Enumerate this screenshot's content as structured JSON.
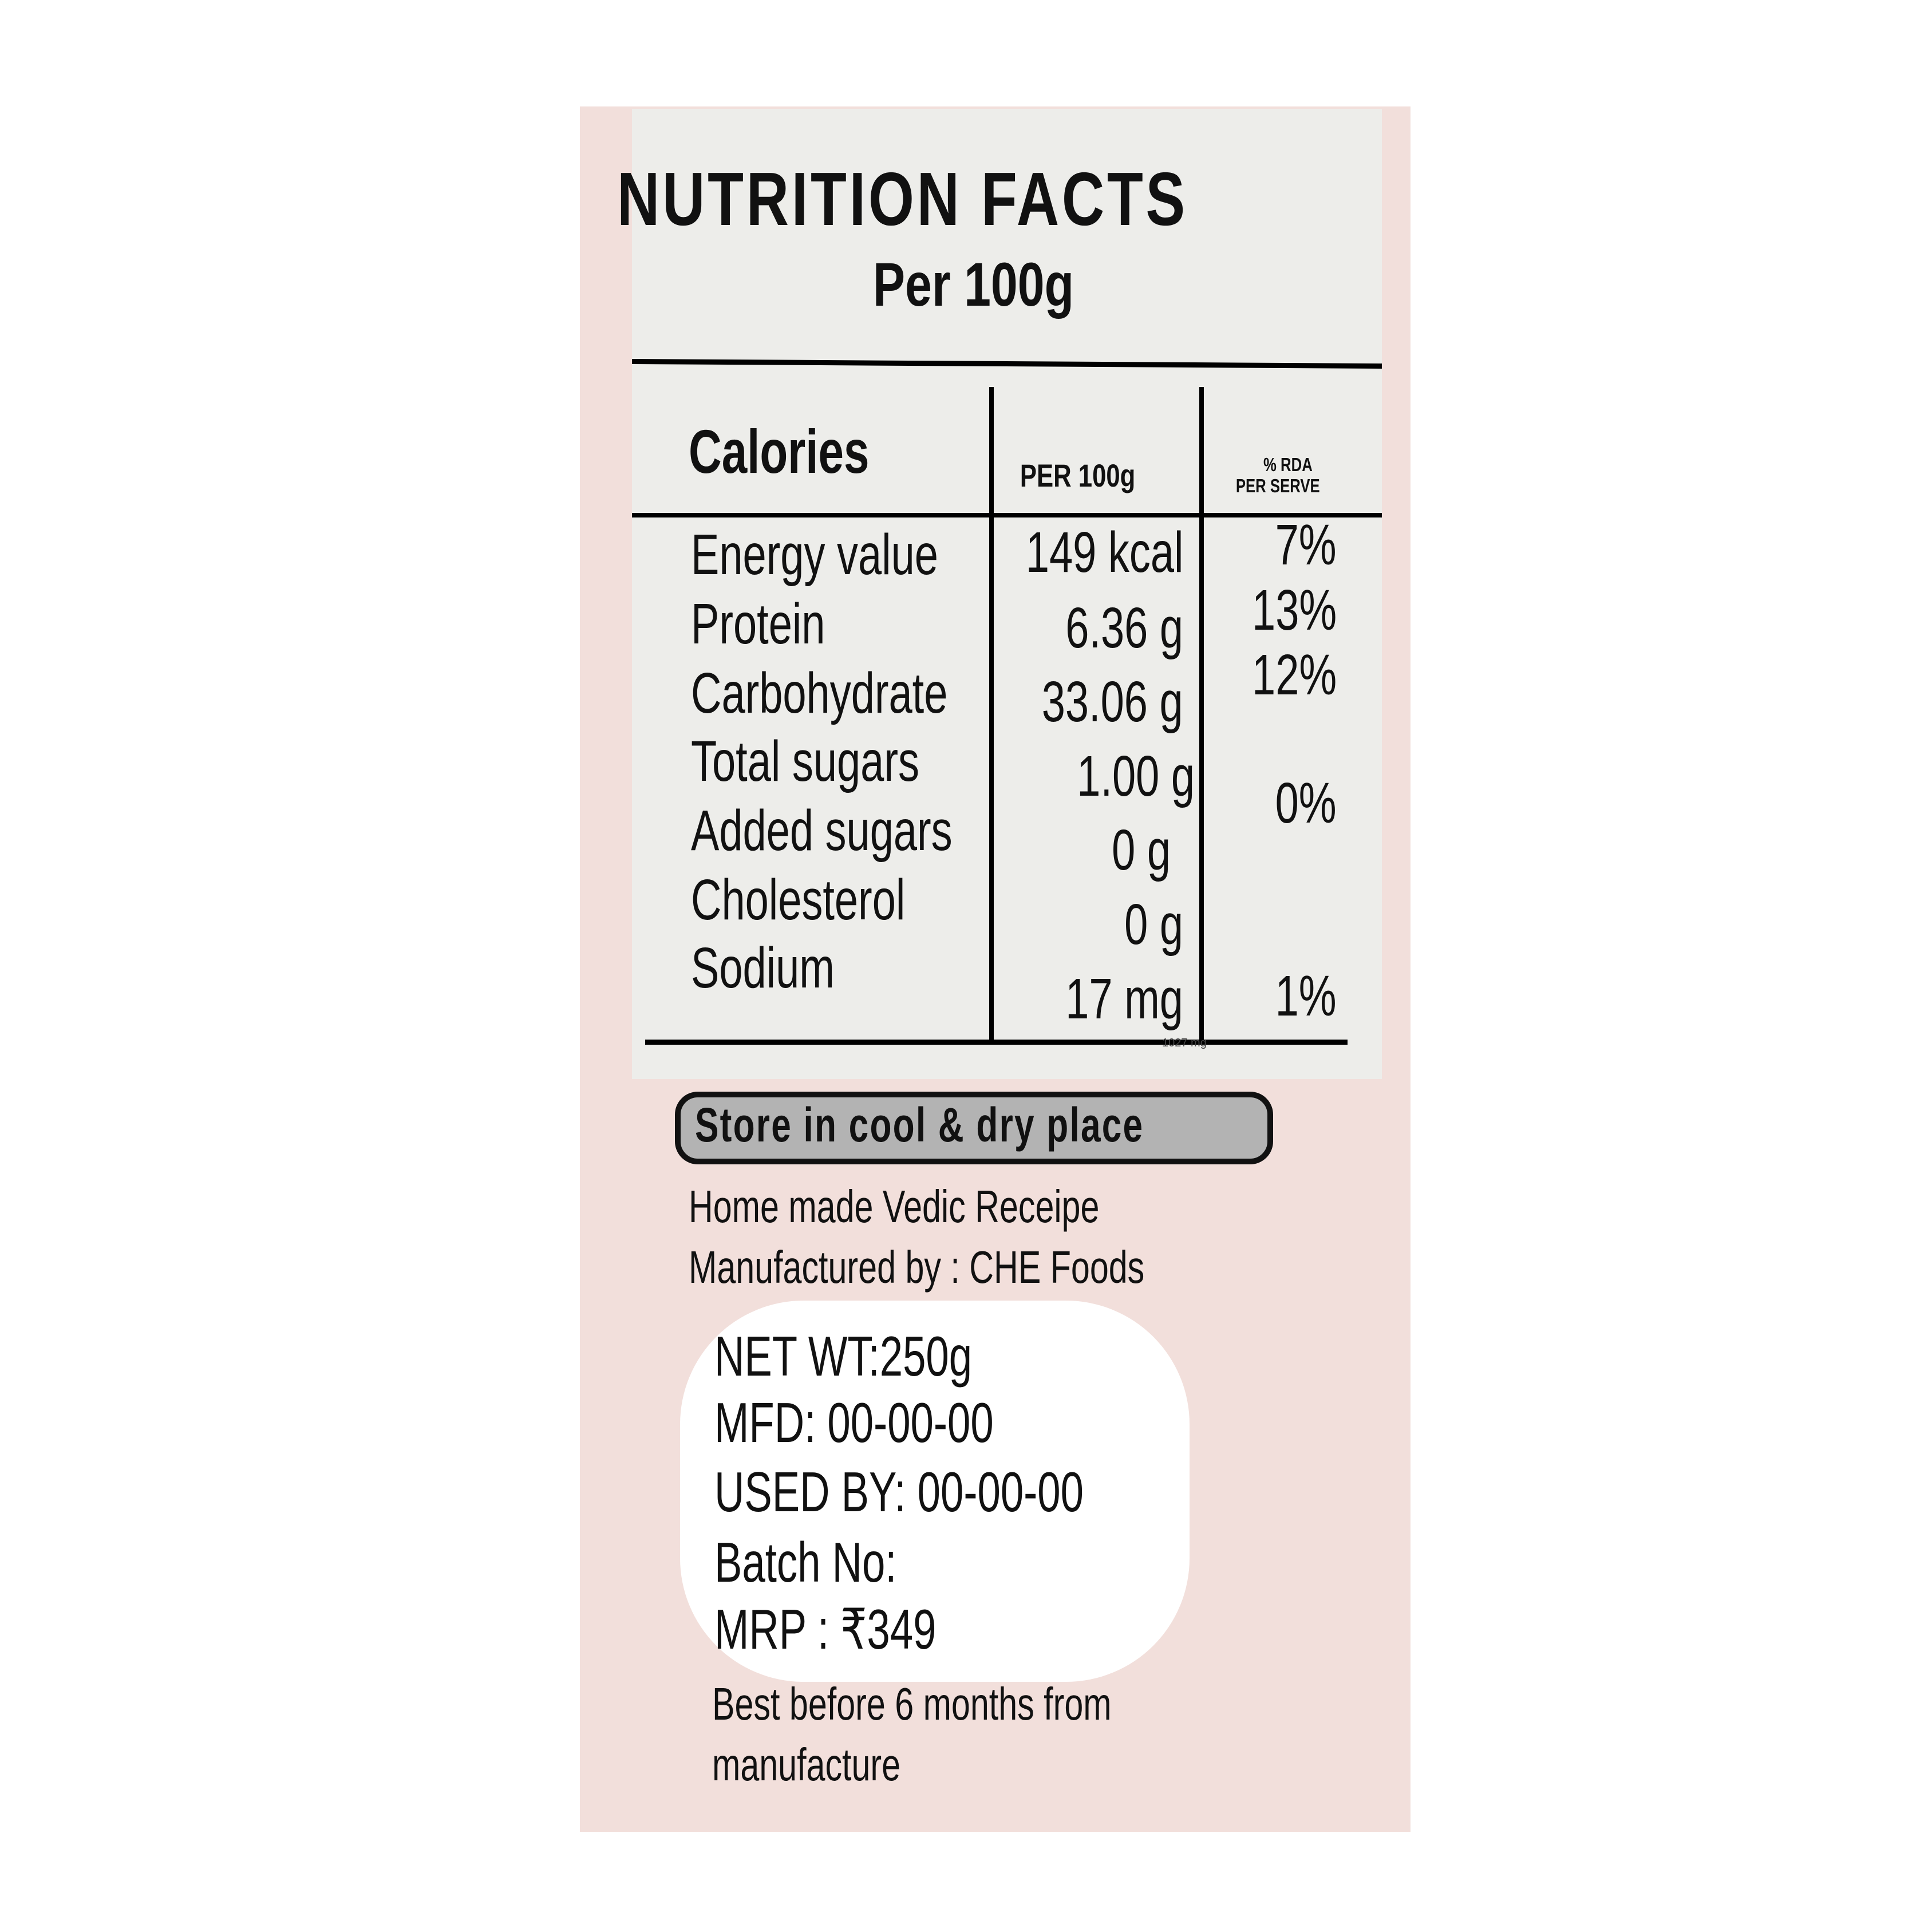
{
  "label": {
    "title": "NUTRITION FACTS",
    "subtitle": "Per 100g",
    "table": {
      "header": {
        "calories": "Calories",
        "per_100g": "PER 100g",
        "rda_line1": "% RDA",
        "rda_line2": "PER SERVE"
      },
      "rows": [
        {
          "name": "Energy value",
          "value": "149 kcal",
          "rda": "7%"
        },
        {
          "name": "Protein",
          "value": "6.36 g",
          "rda": "13%"
        },
        {
          "name": "Carbohydrate",
          "value": "33.06 g",
          "rda": "12%"
        },
        {
          "name": "Total sugars",
          "value": "1.00 g",
          "rda": ""
        },
        {
          "name": "Added sugars",
          "value": "0 g",
          "rda": "0%"
        },
        {
          "name": "Cholesterol",
          "value": "0 g",
          "rda": ""
        },
        {
          "name": "Sodium",
          "value": "17 mg",
          "rda": "1%"
        }
      ],
      "footnote": "1027 mg"
    },
    "storage": "Store in cool & dry place",
    "recipe": "Home made Vedic Receipe",
    "manufacturer": "Manufactured by : CHE Foods",
    "details": {
      "net_wt": "NET WT:250g",
      "mfd": "MFD: 00-00-00",
      "used_by": "USED BY: 00-00-00",
      "batch": "Batch No:",
      "mrp": "MRP : ₹349"
    },
    "best_before_1": "Best before 6 months from",
    "best_before_2": "manufacture"
  },
  "colors": {
    "panel": "#f2dfdb",
    "table_bg": "#ededea",
    "pill": "#b3b3b3"
  }
}
